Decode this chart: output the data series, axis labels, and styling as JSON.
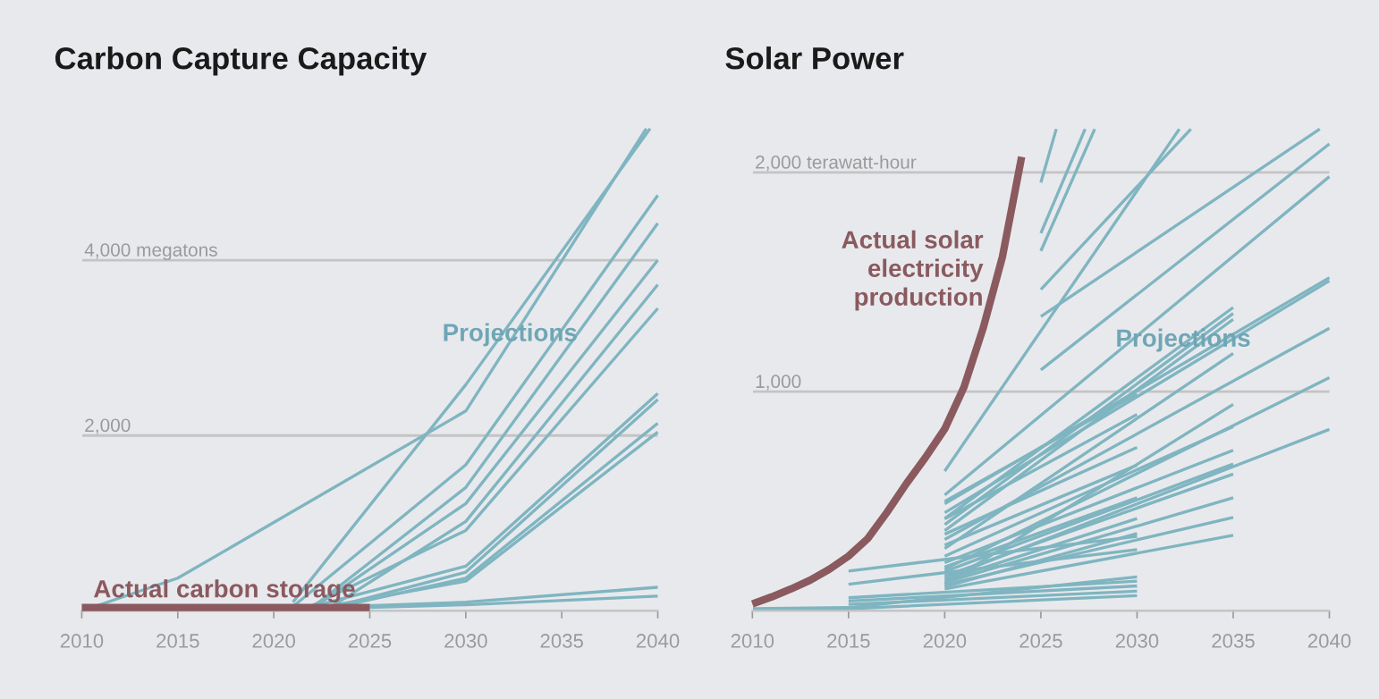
{
  "chart_data": [
    {
      "type": "line",
      "title": "Carbon Capture Capacity",
      "xlim": [
        2010,
        2040
      ],
      "ylim": [
        0,
        5500
      ],
      "xticks": [
        2010,
        2015,
        2020,
        2025,
        2030,
        2035,
        2040
      ],
      "yticks": [
        {
          "value": 0,
          "label": null
        },
        {
          "value": 2000,
          "label": "2,000"
        },
        {
          "value": 4000,
          "label": "4,000 megatons"
        }
      ],
      "grid": "y",
      "legend": false,
      "marker": "none",
      "line_style": "solid",
      "annotations": [
        {
          "text": "Projections",
          "x": 2032.3,
          "y": 3150
        }
      ],
      "series": [
        {
          "name": "Actual carbon storage",
          "color": "#8a5a5f",
          "x": [
            2010,
            2015,
            2020,
            2025
          ],
          "values": [
            40,
            40,
            40,
            40
          ]
        },
        {
          "color": "#7fb5c0",
          "x": [
            2010,
            2015,
            2030,
            2039.4
          ],
          "values": [
            0,
            374,
            2280,
            5500
          ]
        },
        {
          "color": "#7fb5c0",
          "x": [
            2021,
            2030,
            2039.6
          ],
          "values": [
            100,
            2580,
            5500
          ]
        },
        {
          "color": "#7fb5c0",
          "x": [
            2021,
            2030,
            2040
          ],
          "values": [
            50,
            1666,
            4740
          ]
        },
        {
          "color": "#7fb5c0",
          "x": [
            2022,
            2030,
            2040
          ],
          "values": [
            40,
            1408,
            4420
          ]
        },
        {
          "color": "#7fb5c0",
          "x": [
            2022,
            2030,
            2040
          ],
          "values": [
            30,
            1224,
            4000
          ]
        },
        {
          "color": "#7fb5c0",
          "x": [
            2023,
            2030,
            2040
          ],
          "values": [
            50,
            1020,
            3720
          ]
        },
        {
          "color": "#7fb5c0",
          "x": [
            2022,
            2030,
            2040
          ],
          "values": [
            60,
            918,
            3450
          ]
        },
        {
          "color": "#7fb5c0",
          "x": [
            2022,
            2030,
            2040
          ],
          "values": [
            50,
            510,
            2480
          ]
        },
        {
          "color": "#7fb5c0",
          "x": [
            2023,
            2030,
            2040
          ],
          "values": [
            40,
            442,
            2410
          ]
        },
        {
          "color": "#7fb5c0",
          "x": [
            2023,
            2030,
            2040
          ],
          "values": [
            30,
            374,
            2140
          ]
        },
        {
          "color": "#7fb5c0",
          "x": [
            2022,
            2030,
            2040
          ],
          "values": [
            20,
            340,
            2040
          ]
        },
        {
          "color": "#7fb5c0",
          "x": [
            2020,
            2030,
            2040
          ],
          "values": [
            20,
            100,
            270
          ]
        },
        {
          "color": "#7fb5c0",
          "x": [
            2020,
            2030,
            2040
          ],
          "values": [
            10,
            70,
            170
          ]
        }
      ]
    },
    {
      "type": "line",
      "title": "Solar Power",
      "xlim": [
        2010,
        2040
      ],
      "ylim": [
        0,
        2200
      ],
      "xticks": [
        2010,
        2015,
        2020,
        2025,
        2030,
        2035,
        2040
      ],
      "yticks": [
        {
          "value": 0,
          "label": null
        },
        {
          "value": 1000,
          "label": "1,000"
        },
        {
          "value": 2000,
          "label": "2,000 terawatt-hour"
        }
      ],
      "grid": "y",
      "legend": false,
      "marker": "none",
      "line_style": "solid",
      "annotations": [
        {
          "text": "Projections",
          "x": 2032.4,
          "y": 1235
        }
      ],
      "series": [
        {
          "color": "#7fb5c0",
          "x": [
            2025,
            2025.8
          ],
          "values": [
            1954,
            2198
          ]
        },
        {
          "color": "#7fb5c0",
          "x": [
            2025,
            2027.3
          ],
          "values": [
            1723,
            2198
          ]
        },
        {
          "color": "#7fb5c0",
          "x": [
            2025,
            2027.8
          ],
          "values": [
            1642,
            2198
          ]
        },
        {
          "color": "#7fb5c0",
          "x": [
            2025,
            2032.8
          ],
          "values": [
            1466,
            2198
          ]
        },
        {
          "color": "#7fb5c0",
          "x": [
            2025,
            2039.5
          ],
          "values": [
            1343,
            2198
          ]
        },
        {
          "color": "#7fb5c0",
          "x": [
            2025,
            2040
          ],
          "values": [
            1099,
            2130
          ]
        },
        {
          "color": "#7fb5c0",
          "x": [
            2020,
            2032.2
          ],
          "values": [
            638,
            2198
          ]
        },
        {
          "color": "#7fb5c0",
          "x": [
            2020,
            2040
          ],
          "values": [
            529,
            1981
          ]
        },
        {
          "color": "#7fb5c0",
          "x": [
            2020,
            2040
          ],
          "values": [
            489,
            1520
          ]
        },
        {
          "color": "#7fb5c0",
          "x": [
            2020,
            2040
          ],
          "values": [
            448,
            1506
          ]
        },
        {
          "color": "#7fb5c0",
          "x": [
            2020,
            2035
          ],
          "values": [
            421,
            1384
          ]
        },
        {
          "color": "#7fb5c0",
          "x": [
            2020,
            2035
          ],
          "values": [
            394,
            1357
          ]
        },
        {
          "color": "#7fb5c0",
          "x": [
            2020,
            2035
          ],
          "values": [
            366,
            1330
          ]
        },
        {
          "color": "#7fb5c0",
          "x": [
            2020,
            2040
          ],
          "values": [
            326,
            1289
          ]
        },
        {
          "color": "#7fb5c0",
          "x": [
            2020,
            2035
          ],
          "values": [
            285,
            1175
          ]
        },
        {
          "color": "#7fb5c0",
          "x": [
            2020,
            2040
          ],
          "values": [
            190,
            1064
          ]
        },
        {
          "color": "#7fb5c0",
          "x": [
            2020,
            2040
          ],
          "values": [
            149,
            828
          ]
        },
        {
          "color": "#7fb5c0",
          "x": [
            2020,
            2035
          ],
          "values": [
            122,
            942
          ]
        },
        {
          "color": "#7fb5c0",
          "x": [
            2020,
            2030
          ],
          "values": [
            500,
            990
          ]
        },
        {
          "color": "#7fb5c0",
          "x": [
            2020,
            2030
          ],
          "values": [
            420,
            896
          ]
        },
        {
          "color": "#7fb5c0",
          "x": [
            2020,
            2030
          ],
          "values": [
            350,
            746
          ]
        },
        {
          "color": "#7fb5c0",
          "x": [
            2020,
            2030
          ],
          "values": [
            300,
            665
          ]
        },
        {
          "color": "#7fb5c0",
          "x": [
            2020,
            2035
          ],
          "values": [
            250,
            841
          ]
        },
        {
          "color": "#7fb5c0",
          "x": [
            2020,
            2035
          ],
          "values": [
            220,
            733
          ]
        },
        {
          "color": "#7fb5c0",
          "x": [
            2020,
            2030
          ],
          "values": [
            200,
            516
          ]
        },
        {
          "color": "#7fb5c0",
          "x": [
            2020,
            2035
          ],
          "values": [
            180,
            670
          ]
        },
        {
          "color": "#7fb5c0",
          "x": [
            2020,
            2035
          ],
          "values": [
            160,
            624
          ]
        },
        {
          "color": "#7fb5c0",
          "x": [
            2020,
            2030
          ],
          "values": [
            140,
            421
          ]
        },
        {
          "color": "#7fb5c0",
          "x": [
            2020,
            2035
          ],
          "values": [
            130,
            516
          ]
        },
        {
          "color": "#7fb5c0",
          "x": [
            2020,
            2035
          ],
          "values": [
            120,
            426
          ]
        },
        {
          "color": "#7fb5c0",
          "x": [
            2020,
            2030
          ],
          "values": [
            110,
            353
          ]
        },
        {
          "color": "#7fb5c0",
          "x": [
            2020,
            2035
          ],
          "values": [
            100,
            345
          ]
        },
        {
          "color": "#7fb5c0",
          "x": [
            2015,
            2030
          ],
          "values": [
            182,
            340
          ]
        },
        {
          "color": "#7fb5c0",
          "x": [
            2015,
            2030
          ],
          "values": [
            122,
            280
          ]
        },
        {
          "color": "#7fb5c0",
          "x": [
            2010,
            2015,
            2030
          ],
          "values": [
            10,
            15,
            155
          ]
        },
        {
          "color": "#7fb5c0",
          "x": [
            2015,
            2030
          ],
          "values": [
            60,
            136
          ]
        },
        {
          "color": "#7fb5c0",
          "x": [
            2015,
            2030
          ],
          "values": [
            45,
            114
          ]
        },
        {
          "color": "#7fb5c0",
          "x": [
            2015,
            2030
          ],
          "values": [
            30,
            90
          ]
        },
        {
          "color": "#7fb5c0",
          "x": [
            2010,
            2015,
            2030
          ],
          "values": [
            5,
            10,
            70
          ]
        },
        {
          "name": "Actual solar\nelectricity\nproduction",
          "color": "#8a5a5f",
          "x": [
            2010,
            2011,
            2012,
            2013,
            2014,
            2015,
            2016,
            2017,
            2018,
            2019,
            2020,
            2021,
            2022,
            2023,
            2024
          ],
          "values": [
            32,
            64,
            100,
            140,
            190,
            250,
            330,
            450,
            580,
            700,
            830,
            1020,
            1290,
            1615,
            2071
          ]
        }
      ]
    }
  ]
}
